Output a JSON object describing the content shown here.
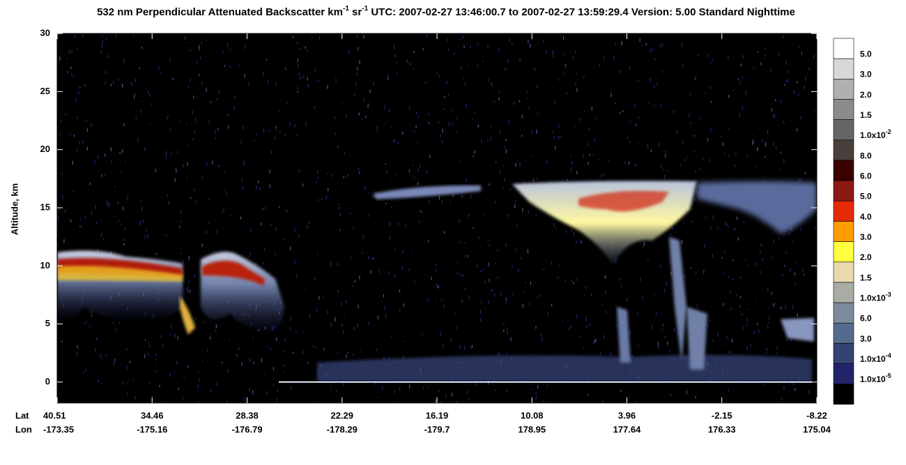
{
  "chart_data": {
    "type": "heatmap",
    "title_parts": [
      {
        "text": "532 nm Perpendicular Attenuated Backscatter km"
      },
      {
        "sup": "-1"
      },
      {
        "text": " sr"
      },
      {
        "sup": "-1"
      },
      {
        "text": "  UTC: 2007-02-27 13:46:00.7 to 2007-02-27 13:59:29.4  Version: 5.00 Standard Nighttime"
      }
    ],
    "y_label": "Altitude, km",
    "ylim": [
      -1.8,
      30
    ],
    "yticks": [
      0,
      5,
      10,
      15,
      20,
      25,
      30
    ],
    "x_rows": [
      {
        "name": "Lat",
        "values": [
          40.51,
          34.46,
          28.38,
          22.29,
          16.19,
          10.08,
          3.96,
          -2.15,
          -8.22
        ]
      },
      {
        "name": "Lon",
        "values": [
          -173.35,
          -175.16,
          -176.79,
          -178.29,
          -179.7,
          178.95,
          177.64,
          176.33,
          175.04
        ]
      }
    ],
    "colorbar": {
      "colors": [
        "#ffffff",
        "#d8d8d8",
        "#b0b0b0",
        "#8c8c8c",
        "#666666",
        "#4a3f3b",
        "#3a0000",
        "#8a1a16",
        "#e52a08",
        "#ff9c00",
        "#ffff40",
        "#ead9ae",
        "#a9aca3",
        "#7b8b99",
        "#556b8d",
        "#344372",
        "#22246a",
        "#000000"
      ],
      "labels": [
        "5.0",
        "3.0",
        "2.0",
        "1.5",
        {
          "text": "1.0x10",
          "sup": "-2"
        },
        "8.0",
        "6.0",
        "5.0",
        "4.0",
        "3.0",
        "2.0",
        "1.5",
        {
          "text": "1.0x10",
          "sup": "-3"
        },
        "6.0",
        "3.0",
        {
          "text": "1.0x10",
          "sup": "-4"
        },
        {
          "text": "1.0x10",
          "sup": "-5"
        }
      ]
    }
  }
}
